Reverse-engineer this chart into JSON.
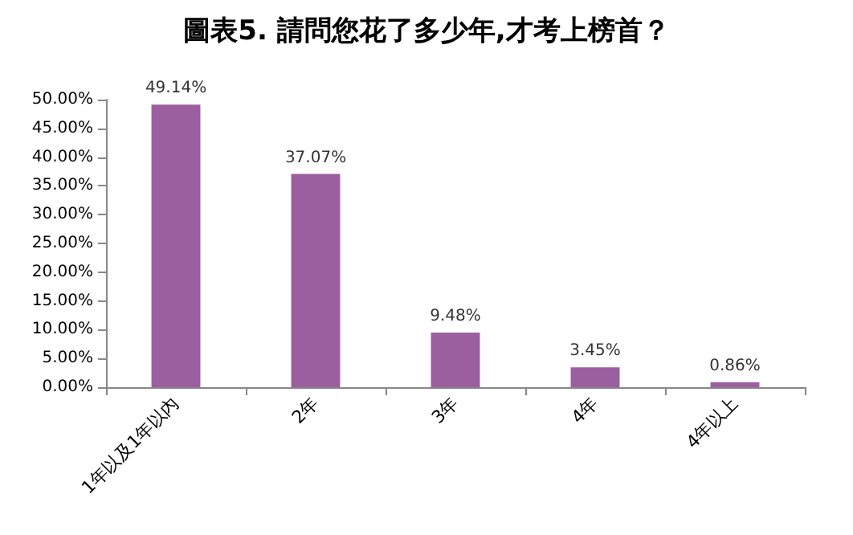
{
  "chart_data": {
    "type": "bar",
    "title": "圖表5. 請問您花了多少年,才考上榜首？",
    "categories": [
      "1年以及1年以內",
      "2年",
      "3年",
      "4年",
      "4年以上"
    ],
    "values": [
      49.14,
      37.07,
      9.48,
      3.45,
      0.86
    ],
    "value_labels": [
      "49.14%",
      "37.07%",
      "9.48%",
      "3.45%",
      "0.86%"
    ],
    "color": "#9b5fa0",
    "ylim": [
      0,
      50
    ],
    "yticks": [
      {
        "value": 0,
        "label": "0.00%"
      },
      {
        "value": 5,
        "label": "5.00%"
      },
      {
        "value": 10,
        "label": "10.00%"
      },
      {
        "value": 15,
        "label": "15.00%"
      },
      {
        "value": 20,
        "label": "20.00%"
      },
      {
        "value": 25,
        "label": "25.00%"
      },
      {
        "value": 30,
        "label": "30.00%"
      },
      {
        "value": 35,
        "label": "35.00%"
      },
      {
        "value": 40,
        "label": "40.00%"
      },
      {
        "value": 45,
        "label": "45.00%"
      },
      {
        "value": 50,
        "label": "50.00%"
      }
    ],
    "grid": false
  }
}
